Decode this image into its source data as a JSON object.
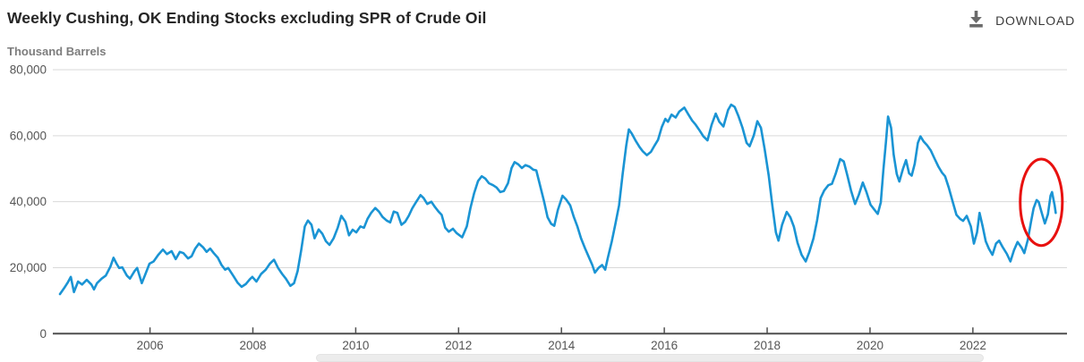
{
  "header": {
    "title": "Weekly Cushing, OK Ending Stocks excluding SPR of Crude Oil",
    "download": {
      "label": "DOWNLOAD"
    }
  },
  "chart_data": {
    "type": "line",
    "title": "Weekly Cushing, OK Ending Stocks excluding SPR of Crude Oil",
    "ylabel": "Thousand Barrels",
    "xlabel": "",
    "grid": true,
    "legend": false,
    "line_color": "#1a94d4",
    "grid_color": "#d9d9d9",
    "axis_color": "#4f4f4f",
    "tick_label_color": "#555555",
    "xlim": [
      2004.11,
      2023.83
    ],
    "ylim": [
      0,
      80000
    ],
    "x_ticks": [
      2006,
      2008,
      2010,
      2012,
      2014,
      2016,
      2018,
      2020,
      2022
    ],
    "y_ticks": [
      0,
      20000,
      40000,
      60000,
      80000
    ],
    "y_tick_labels": [
      "0",
      "20,000",
      "40,000",
      "60,000",
      "80,000"
    ],
    "annotation": {
      "shape": "ellipse",
      "center_x": 2023.33,
      "center_y": 39800,
      "rx_years": 0.41,
      "ry_value": 13100,
      "color": "#e8110f",
      "stroke_width": 3
    },
    "series": [
      {
        "name": "Cushing, OK ending stocks excluding SPR",
        "x": [
          2004.25,
          2004.33,
          2004.4,
          2004.46,
          2004.52,
          2004.6,
          2004.68,
          2004.77,
          2004.86,
          2004.91,
          2004.97,
          2005.06,
          2005.14,
          2005.23,
          2005.29,
          2005.35,
          2005.4,
          2005.46,
          2005.55,
          2005.61,
          2005.7,
          2005.75,
          2005.84,
          2005.9,
          2005.99,
          2006.07,
          2006.16,
          2006.25,
          2006.33,
          2006.42,
          2006.5,
          2006.58,
          2006.65,
          2006.74,
          2006.81,
          2006.88,
          2006.95,
          2007.03,
          2007.1,
          2007.17,
          2007.24,
          2007.32,
          2007.39,
          2007.46,
          2007.52,
          2007.62,
          2007.7,
          2007.78,
          2007.86,
          2007.94,
          2007.99,
          2008.07,
          2008.16,
          2008.25,
          2008.33,
          2008.41,
          2008.49,
          2008.57,
          2008.64,
          2008.73,
          2008.8,
          2008.87,
          2008.94,
          2009.01,
          2009.07,
          2009.14,
          2009.2,
          2009.28,
          2009.35,
          2009.42,
          2009.49,
          2009.57,
          2009.65,
          2009.72,
          2009.8,
          2009.87,
          2009.94,
          2010.01,
          2010.09,
          2010.16,
          2010.23,
          2010.3,
          2010.38,
          2010.45,
          2010.52,
          2010.6,
          2010.67,
          2010.74,
          2010.81,
          2010.89,
          2010.96,
          2011.03,
          2011.1,
          2011.17,
          2011.26,
          2011.32,
          2011.39,
          2011.47,
          2011.54,
          2011.61,
          2011.67,
          2011.74,
          2011.81,
          2011.89,
          2011.96,
          2012.07,
          2012.16,
          2012.23,
          2012.3,
          2012.38,
          2012.45,
          2012.52,
          2012.59,
          2012.67,
          2012.74,
          2012.81,
          2012.88,
          2012.96,
          2013.03,
          2013.09,
          2013.16,
          2013.23,
          2013.3,
          2013.38,
          2013.45,
          2013.51,
          2013.58,
          2013.66,
          2013.73,
          2013.8,
          2013.86,
          2013.93,
          2014.02,
          2014.09,
          2014.17,
          2014.24,
          2014.31,
          2014.38,
          2014.46,
          2014.53,
          2014.6,
          2014.65,
          2014.72,
          2014.79,
          2014.85,
          2014.9,
          2014.98,
          2015.05,
          2015.12,
          2015.19,
          2015.26,
          2015.31,
          2015.37,
          2015.45,
          2015.52,
          2015.58,
          2015.66,
          2015.74,
          2015.81,
          2015.88,
          2015.95,
          2016.02,
          2016.07,
          2016.14,
          2016.22,
          2016.29,
          2016.39,
          2016.47,
          2016.54,
          2016.61,
          2016.69,
          2016.76,
          2016.84,
          2016.92,
          2017.0,
          2017.07,
          2017.15,
          2017.24,
          2017.3,
          2017.37,
          2017.44,
          2017.52,
          2017.6,
          2017.66,
          2017.74,
          2017.81,
          2017.88,
          2017.95,
          2018.03,
          2018.1,
          2018.17,
          2018.22,
          2018.29,
          2018.38,
          2018.45,
          2018.52,
          2018.59,
          2018.67,
          2018.75,
          2018.82,
          2018.9,
          2018.97,
          2019.04,
          2019.11,
          2019.19,
          2019.26,
          2019.33,
          2019.42,
          2019.49,
          2019.56,
          2019.63,
          2019.71,
          2019.78,
          2019.86,
          2019.93,
          2020.01,
          2020.09,
          2020.15,
          2020.21,
          2020.26,
          2020.31,
          2020.35,
          2020.41,
          2020.46,
          2020.52,
          2020.57,
          2020.64,
          2020.7,
          2020.76,
          2020.81,
          2020.87,
          2020.93,
          2020.98,
          2021.04,
          2021.11,
          2021.18,
          2021.26,
          2021.33,
          2021.4,
          2021.46,
          2021.53,
          2021.61,
          2021.68,
          2021.75,
          2021.81,
          2021.88,
          2021.96,
          2022.02,
          2022.08,
          2022.13,
          2022.19,
          2022.25,
          2022.31,
          2022.38,
          2022.45,
          2022.51,
          2022.58,
          2022.66,
          2022.73,
          2022.8,
          2022.87,
          2022.95,
          2023.0,
          2023.07,
          2023.13,
          2023.18,
          2023.24,
          2023.28,
          2023.34,
          2023.4,
          2023.46,
          2023.51,
          2023.54,
          2023.59,
          2023.61
        ],
        "y": [
          12000,
          13800,
          15500,
          17200,
          12600,
          15800,
          14900,
          16300,
          14900,
          13400,
          15300,
          16700,
          17600,
          20300,
          23000,
          21200,
          19900,
          20100,
          17600,
          16700,
          19000,
          19900,
          15300,
          17600,
          21200,
          21900,
          23900,
          25500,
          24100,
          25000,
          22600,
          24800,
          24400,
          22800,
          23500,
          25800,
          27300,
          26200,
          24800,
          25800,
          24400,
          23000,
          20800,
          19400,
          19900,
          17500,
          15500,
          14200,
          15000,
          16500,
          17200,
          15800,
          18100,
          19400,
          21200,
          22400,
          19900,
          18100,
          16700,
          14500,
          15300,
          19000,
          25300,
          32500,
          34300,
          33000,
          28900,
          31600,
          30300,
          28000,
          26900,
          28900,
          32100,
          35700,
          33900,
          29800,
          31500,
          30700,
          32500,
          32100,
          34800,
          36600,
          38100,
          37000,
          35400,
          34300,
          33700,
          37000,
          36600,
          33000,
          33900,
          35700,
          38000,
          39800,
          42000,
          41100,
          39300,
          40000,
          38400,
          37000,
          36000,
          32100,
          30900,
          31800,
          30500,
          29200,
          32500,
          38000,
          42500,
          46300,
          47700,
          47000,
          45600,
          45000,
          44300,
          42900,
          43200,
          45600,
          50200,
          52000,
          51300,
          50200,
          51100,
          50600,
          49700,
          49500,
          45200,
          40200,
          35300,
          33300,
          32700,
          37500,
          41800,
          40700,
          38900,
          35400,
          32500,
          28900,
          25800,
          23300,
          20800,
          18500,
          19900,
          20800,
          19400,
          22800,
          28000,
          33400,
          38900,
          48400,
          57000,
          61900,
          60600,
          58300,
          56500,
          55300,
          54100,
          55100,
          57000,
          58800,
          62600,
          65100,
          64200,
          66400,
          65500,
          67300,
          68500,
          66400,
          64600,
          63300,
          61500,
          59800,
          58600,
          63300,
          66700,
          64200,
          62800,
          67800,
          69400,
          68700,
          66000,
          62400,
          57800,
          56800,
          60100,
          64400,
          62400,
          56000,
          47900,
          38900,
          30700,
          28200,
          33000,
          36900,
          35300,
          32400,
          27600,
          23900,
          21900,
          24800,
          28900,
          34300,
          41100,
          43400,
          45000,
          45400,
          48400,
          52900,
          52200,
          47900,
          43400,
          39300,
          42000,
          45800,
          43000,
          39100,
          37500,
          36300,
          39800,
          49700,
          58300,
          65800,
          62400,
          54200,
          48400,
          46100,
          49900,
          52600,
          48600,
          47900,
          51500,
          57800,
          59800,
          58300,
          57100,
          55600,
          52900,
          50600,
          48800,
          47700,
          44300,
          39800,
          36000,
          34800,
          34200,
          35700,
          32500,
          27300,
          30700,
          36600,
          32500,
          28000,
          25800,
          23900,
          27300,
          28200,
          26200,
          24200,
          21900,
          25300,
          27800,
          26000,
          24400,
          28500,
          33900,
          38000,
          40500,
          39900,
          36600,
          33400,
          36200,
          41800,
          42900,
          38900,
          36600
        ]
      }
    ]
  },
  "scrollbar": {
    "present": true
  }
}
